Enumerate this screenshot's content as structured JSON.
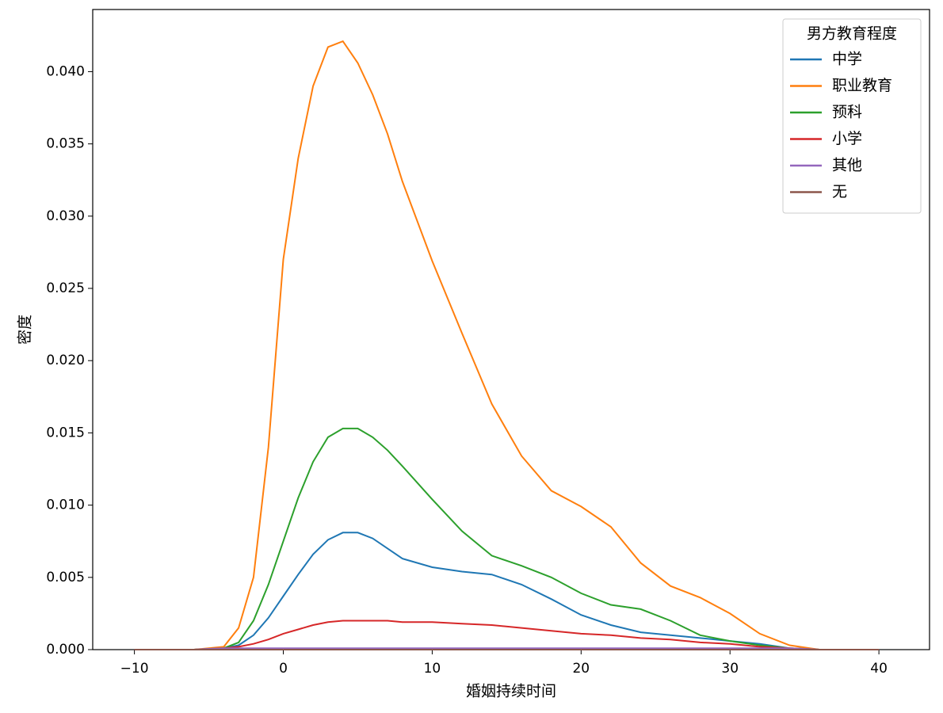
{
  "chart_data": {
    "type": "line",
    "xlabel": "婚姻持续时间",
    "ylabel": "密度",
    "legend_title": "男方教育程度",
    "legend": "upper right",
    "x": [
      -10,
      -8,
      -6,
      -4,
      -3,
      -2,
      -1,
      0,
      1,
      2,
      3,
      4,
      5,
      6,
      7,
      8,
      10,
      12,
      14,
      16,
      18,
      20,
      22,
      24,
      26,
      28,
      30,
      32,
      34,
      36,
      38,
      40
    ],
    "series": [
      {
        "name": "中学",
        "color": "#1f77b4",
        "values": [
          0,
          0,
          0,
          0.0001,
          0.0003,
          0.001,
          0.0022,
          0.0037,
          0.0052,
          0.0066,
          0.0076,
          0.0081,
          0.0081,
          0.0077,
          0.007,
          0.0063,
          0.0057,
          0.0054,
          0.0052,
          0.0045,
          0.0035,
          0.0024,
          0.0017,
          0.0012,
          0.001,
          0.0008,
          0.0006,
          0.0004,
          0.0001,
          0,
          0,
          0
        ]
      },
      {
        "name": "职业教育",
        "color": "#ff7f0e",
        "values": [
          0,
          0,
          0,
          0.0002,
          0.0015,
          0.005,
          0.014,
          0.027,
          0.034,
          0.039,
          0.0417,
          0.0421,
          0.0406,
          0.0384,
          0.0357,
          0.0324,
          0.0269,
          0.0219,
          0.017,
          0.0134,
          0.011,
          0.0099,
          0.0085,
          0.006,
          0.0044,
          0.0036,
          0.0025,
          0.0011,
          0.0003,
          0,
          0,
          0
        ]
      },
      {
        "name": "预科",
        "color": "#2ca02c",
        "values": [
          0,
          0,
          0,
          0.0001,
          0.0005,
          0.002,
          0.0045,
          0.0075,
          0.0105,
          0.013,
          0.0147,
          0.0153,
          0.0153,
          0.0147,
          0.0138,
          0.0127,
          0.0104,
          0.0082,
          0.0065,
          0.0058,
          0.005,
          0.0039,
          0.0031,
          0.0028,
          0.002,
          0.001,
          0.0006,
          0.0003,
          0.0001,
          0,
          0,
          0
        ]
      },
      {
        "name": "小学",
        "color": "#d62728",
        "values": [
          0,
          0,
          0,
          0.0001,
          0.0002,
          0.0004,
          0.0007,
          0.0011,
          0.0014,
          0.0017,
          0.0019,
          0.002,
          0.002,
          0.002,
          0.002,
          0.0019,
          0.0019,
          0.0018,
          0.0017,
          0.0015,
          0.0013,
          0.0011,
          0.001,
          0.0008,
          0.0007,
          0.0005,
          0.0004,
          0.0002,
          0.0001,
          0,
          0,
          0
        ]
      },
      {
        "name": "其他",
        "color": "#9467bd",
        "values": [
          0,
          0,
          0,
          0.0001,
          0.0001,
          0.0001,
          0.0001,
          0.0001,
          0.0001,
          0.0001,
          0.0001,
          0.0001,
          0.0001,
          0.0001,
          0.0001,
          0.0001,
          0.0001,
          0.0001,
          0.0001,
          0.0001,
          0.0001,
          0.0001,
          0.0001,
          0.0001,
          0.0001,
          0.0001,
          0.0001,
          0.0001,
          0.0001,
          0,
          0,
          0
        ]
      },
      {
        "name": "无",
        "color": "#8c564b",
        "values": [
          0,
          0,
          0,
          0,
          0,
          0,
          0,
          0,
          0,
          0,
          0,
          0,
          0,
          0,
          0,
          0,
          0,
          0,
          0,
          0,
          0,
          0,
          0,
          0,
          0,
          0,
          0,
          0,
          0,
          0,
          0,
          0
        ]
      }
    ],
    "xlim": [
      -12.8,
      43.4
    ],
    "ylim": [
      0,
      0.0443
    ],
    "xticks": [
      {
        "value": -10,
        "label": "−10"
      },
      0,
      10,
      20,
      30,
      40
    ],
    "yticks": [
      {
        "value": 0,
        "label": "0.000"
      },
      {
        "value": 0.005,
        "label": "0.005"
      },
      {
        "value": 0.01,
        "label": "0.010"
      },
      {
        "value": 0.015,
        "label": "0.015"
      },
      {
        "value": 0.02,
        "label": "0.020"
      },
      {
        "value": 0.025,
        "label": "0.025"
      },
      {
        "value": 0.03,
        "label": "0.030"
      },
      {
        "value": 0.035,
        "label": "0.035"
      },
      {
        "value": 0.04,
        "label": "0.040"
      }
    ]
  }
}
